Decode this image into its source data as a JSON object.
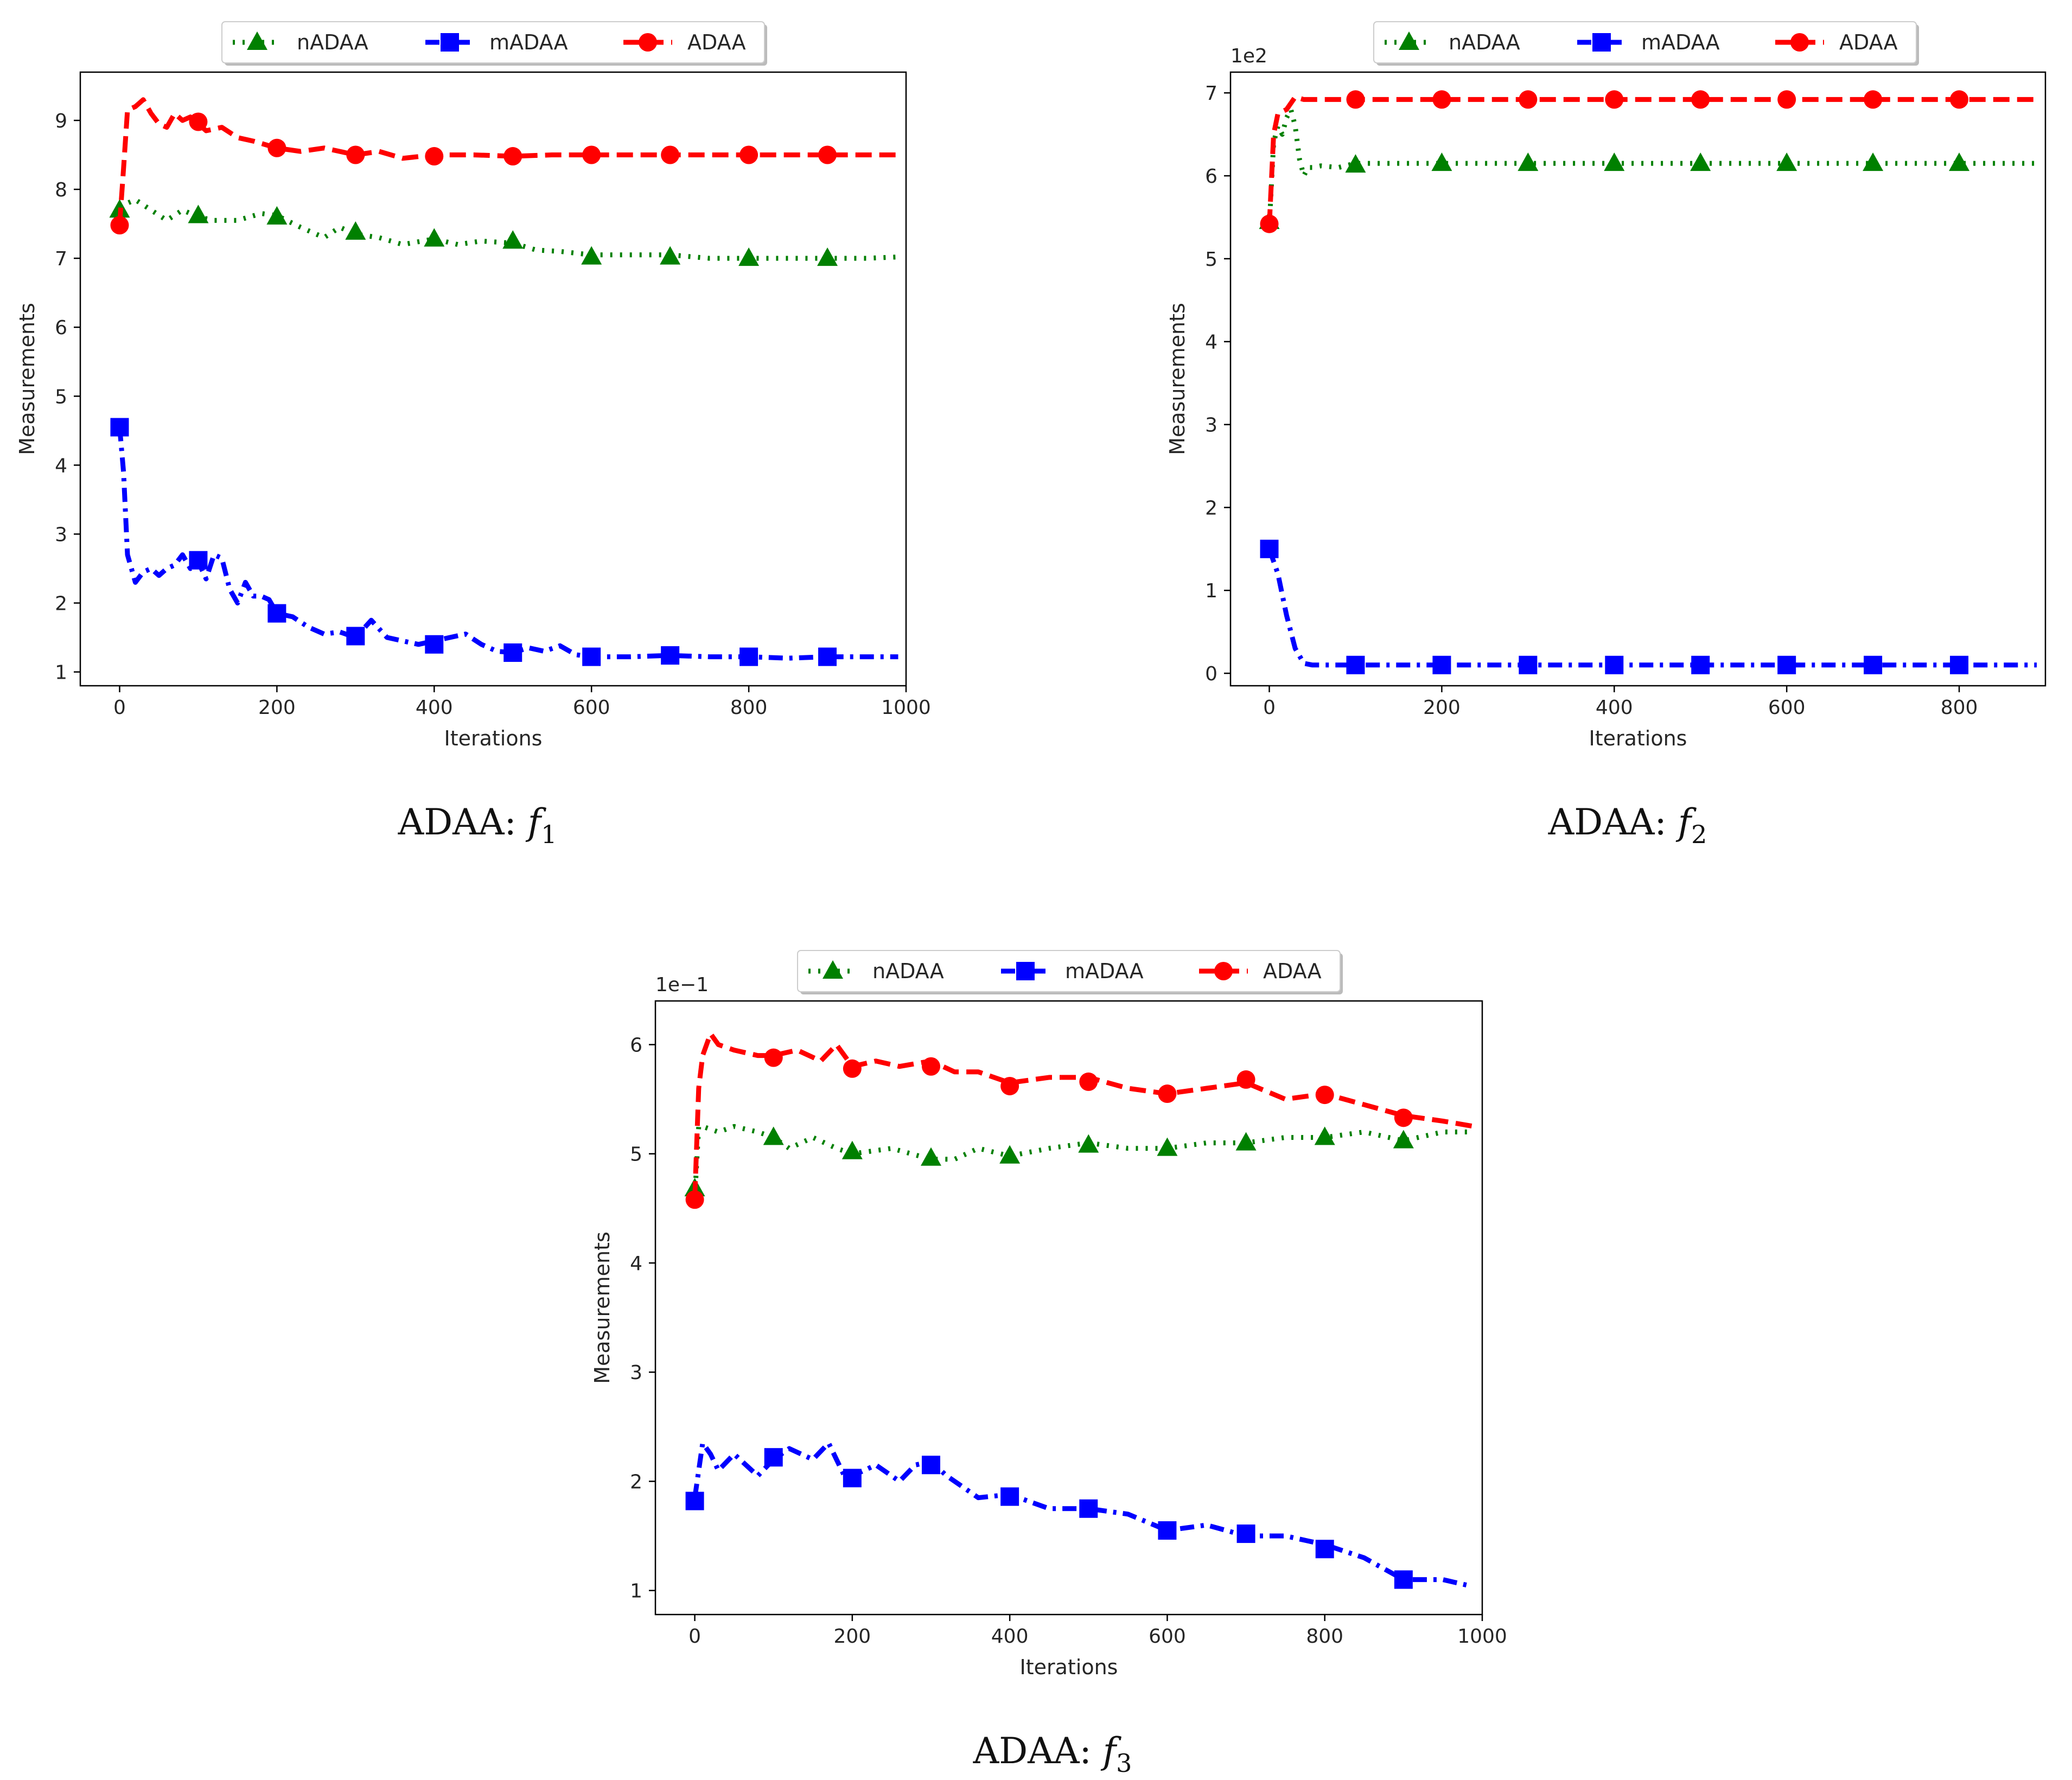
{
  "colors": {
    "nADAA": "#008000",
    "mADAA": "#0000ff",
    "ADAA": "#ff0000",
    "axis": "#000000",
    "text": "#262626"
  },
  "chart_data": [
    {
      "type": "line",
      "caption": "ADAA: ",
      "caption_func": "f",
      "caption_sub": "1",
      "xlabel": "Iterations",
      "ylabel": "Measurements",
      "offset_text": "",
      "xlim": [
        -50,
        1000
      ],
      "ylim": [
        0.8,
        9.7
      ],
      "xticks": [
        0,
        200,
        400,
        600,
        800,
        1000
      ],
      "xtick_labels": [
        "0",
        "200",
        "400",
        "600",
        "800",
        "1000"
      ],
      "yticks": [
        1,
        2,
        3,
        4,
        5,
        6,
        7,
        8,
        9
      ],
      "ytick_labels": [
        "1",
        "2",
        "3",
        "4",
        "5",
        "6",
        "7",
        "8",
        "9"
      ],
      "legend": [
        "nADAA",
        "mADAA",
        "ADAA"
      ],
      "series": [
        {
          "name": "nADAA",
          "style": "dotted",
          "marker": "triangle",
          "x": [
            0,
            10,
            20,
            40,
            60,
            80,
            100,
            120,
            150,
            180,
            200,
            230,
            260,
            280,
            300,
            330,
            360,
            400,
            430,
            460,
            500,
            530,
            560,
            600,
            650,
            700,
            750,
            800,
            850,
            900,
            950,
            990
          ],
          "y": [
            7.75,
            7.8,
            7.85,
            7.7,
            7.55,
            7.7,
            7.6,
            7.55,
            7.55,
            7.65,
            7.62,
            7.45,
            7.3,
            7.45,
            7.35,
            7.3,
            7.2,
            7.28,
            7.2,
            7.25,
            7.22,
            7.12,
            7.1,
            7.05,
            7.05,
            7.05,
            7.0,
            7.0,
            7.0,
            7.0,
            7.0,
            7.02
          ],
          "marker_x": [
            0,
            100,
            200,
            300,
            400,
            500,
            600,
            700,
            800,
            900
          ],
          "marker_y": [
            7.7,
            7.62,
            7.6,
            7.38,
            7.28,
            7.25,
            7.02,
            7.02,
            7.0,
            7.0
          ]
        },
        {
          "name": "mADAA",
          "style": "dashdot",
          "marker": "square",
          "x": [
            0,
            5,
            10,
            20,
            30,
            40,
            50,
            60,
            70,
            80,
            90,
            100,
            110,
            120,
            130,
            140,
            150,
            160,
            170,
            180,
            190,
            200,
            220,
            240,
            260,
            280,
            300,
            320,
            340,
            360,
            380,
            400,
            420,
            440,
            460,
            480,
            500,
            520,
            540,
            560,
            580,
            600,
            650,
            700,
            750,
            800,
            850,
            900,
            950,
            990
          ],
          "y": [
            4.55,
            3.9,
            2.7,
            2.3,
            2.45,
            2.5,
            2.4,
            2.5,
            2.55,
            2.7,
            2.5,
            2.6,
            2.35,
            2.7,
            2.65,
            2.2,
            2.0,
            2.3,
            2.1,
            2.1,
            2.05,
            1.85,
            1.8,
            1.65,
            1.55,
            1.58,
            1.5,
            1.75,
            1.5,
            1.45,
            1.4,
            1.45,
            1.5,
            1.55,
            1.4,
            1.3,
            1.28,
            1.35,
            1.3,
            1.38,
            1.25,
            1.22,
            1.22,
            1.24,
            1.22,
            1.22,
            1.2,
            1.22,
            1.22,
            1.22
          ],
          "marker_x": [
            0,
            100,
            200,
            300,
            400,
            500,
            600,
            700,
            800,
            900
          ],
          "marker_y": [
            4.55,
            2.62,
            1.85,
            1.52,
            1.4,
            1.28,
            1.22,
            1.24,
            1.22,
            1.22
          ]
        },
        {
          "name": "ADAA",
          "style": "dashed",
          "marker": "circle",
          "x": [
            0,
            5,
            10,
            20,
            30,
            40,
            50,
            60,
            70,
            80,
            90,
            100,
            110,
            130,
            150,
            170,
            200,
            230,
            260,
            300,
            330,
            360,
            400,
            450,
            500,
            550,
            600,
            700,
            800,
            900,
            990
          ],
          "y": [
            7.5,
            8.3,
            9.15,
            9.2,
            9.3,
            9.1,
            8.95,
            8.9,
            9.1,
            9.0,
            9.05,
            8.95,
            8.85,
            8.9,
            8.75,
            8.7,
            8.6,
            8.55,
            8.6,
            8.5,
            8.55,
            8.45,
            8.5,
            8.5,
            8.48,
            8.5,
            8.5,
            8.5,
            8.5,
            8.5,
            8.5
          ],
          "marker_x": [
            0,
            100,
            200,
            300,
            400,
            500,
            600,
            700,
            800,
            900
          ],
          "marker_y": [
            7.48,
            8.98,
            8.6,
            8.5,
            8.48,
            8.48,
            8.5,
            8.5,
            8.5,
            8.5
          ]
        }
      ]
    },
    {
      "type": "line",
      "caption": "ADAA: ",
      "caption_func": "f",
      "caption_sub": "2",
      "xlabel": "Iterations",
      "ylabel": "Measurements",
      "offset_text": "1e2",
      "xlim": [
        -45,
        900
      ],
      "ylim": [
        -0.15,
        7.25
      ],
      "xticks": [
        0,
        200,
        400,
        600,
        800
      ],
      "xtick_labels": [
        "0",
        "200",
        "400",
        "600",
        "800"
      ],
      "yticks": [
        0,
        1,
        2,
        3,
        4,
        5,
        6,
        7
      ],
      "ytick_labels": [
        "0",
        "1",
        "2",
        "3",
        "4",
        "5",
        "6",
        "7"
      ],
      "legend": [
        "nADAA",
        "mADAA",
        "ADAA"
      ],
      "series": [
        {
          "name": "nADAA",
          "style": "dotted",
          "marker": "triangle",
          "x": [
            0,
            5,
            10,
            15,
            20,
            25,
            30,
            35,
            40,
            45,
            50,
            60,
            80,
            100,
            200,
            300,
            400,
            500,
            600,
            700,
            800,
            890
          ],
          "y": [
            5.4,
            6.4,
            6.6,
            6.5,
            6.7,
            6.8,
            6.6,
            6.2,
            6.0,
            6.1,
            6.1,
            6.12,
            6.1,
            6.15,
            6.15,
            6.15,
            6.15,
            6.15,
            6.15,
            6.15,
            6.15,
            6.15
          ],
          "marker_x": [
            0,
            100,
            200,
            300,
            400,
            500,
            600,
            700,
            800
          ],
          "marker_y": [
            5.45,
            6.13,
            6.15,
            6.15,
            6.15,
            6.15,
            6.15,
            6.15,
            6.15
          ]
        },
        {
          "name": "mADAA",
          "style": "dashdot",
          "marker": "square",
          "x": [
            0,
            10,
            20,
            30,
            40,
            50,
            60,
            80,
            100,
            200,
            300,
            400,
            500,
            600,
            700,
            800,
            890
          ],
          "y": [
            1.5,
            1.2,
            0.7,
            0.3,
            0.12,
            0.1,
            0.1,
            0.1,
            0.1,
            0.1,
            0.1,
            0.1,
            0.1,
            0.1,
            0.1,
            0.1,
            0.1
          ],
          "marker_x": [
            0,
            100,
            200,
            300,
            400,
            500,
            600,
            700,
            800
          ],
          "marker_y": [
            1.5,
            0.1,
            0.1,
            0.1,
            0.1,
            0.1,
            0.1,
            0.1,
            0.1
          ]
        },
        {
          "name": "ADAA",
          "style": "dashed",
          "marker": "circle",
          "x": [
            0,
            5,
            10,
            20,
            30,
            40,
            60,
            80,
            100,
            200,
            300,
            400,
            500,
            600,
            700,
            800,
            890
          ],
          "y": [
            5.4,
            6.5,
            6.75,
            6.8,
            6.95,
            6.92,
            6.92,
            6.92,
            6.92,
            6.92,
            6.92,
            6.92,
            6.92,
            6.92,
            6.92,
            6.92,
            6.92
          ],
          "marker_x": [
            0,
            100,
            200,
            300,
            400,
            500,
            600,
            700,
            800
          ],
          "marker_y": [
            5.42,
            6.92,
            6.92,
            6.92,
            6.92,
            6.92,
            6.92,
            6.92,
            6.92
          ]
        }
      ]
    },
    {
      "type": "line",
      "caption": "ADAA: ",
      "caption_func": "f",
      "caption_sub": "3",
      "xlabel": "Iterations",
      "ylabel": "Measurements",
      "offset_text": "1e−1",
      "xlim": [
        -50,
        1000
      ],
      "ylim": [
        0.78,
        6.4
      ],
      "xticks": [
        0,
        200,
        400,
        600,
        800,
        1000
      ],
      "xtick_labels": [
        "0",
        "200",
        "400",
        "600",
        "800",
        "1000"
      ],
      "yticks": [
        1,
        2,
        3,
        4,
        5,
        6
      ],
      "ytick_labels": [
        "1",
        "2",
        "3",
        "4",
        "5",
        "6"
      ],
      "legend": [
        "nADAA",
        "mADAA",
        "ADAA"
      ],
      "series": [
        {
          "name": "nADAA",
          "style": "dotted",
          "marker": "triangle",
          "x": [
            0,
            5,
            10,
            30,
            50,
            80,
            100,
            120,
            150,
            180,
            200,
            250,
            300,
            330,
            360,
            400,
            450,
            500,
            550,
            600,
            650,
            700,
            750,
            800,
            850,
            900,
            950,
            990
          ],
          "y": [
            4.6,
            5.25,
            5.25,
            5.2,
            5.25,
            5.2,
            5.15,
            5.05,
            5.15,
            5.05,
            5.0,
            5.05,
            4.95,
            4.95,
            5.05,
            4.98,
            5.05,
            5.1,
            5.05,
            5.05,
            5.1,
            5.1,
            5.15,
            5.15,
            5.2,
            5.12,
            5.2,
            5.2
          ],
          "marker_x": [
            0,
            100,
            200,
            300,
            400,
            500,
            600,
            700,
            800,
            900
          ],
          "marker_y": [
            4.68,
            5.15,
            5.02,
            4.96,
            4.98,
            5.08,
            5.05,
            5.1,
            5.15,
            5.12
          ]
        },
        {
          "name": "mADAA",
          "style": "dashdot",
          "marker": "square",
          "x": [
            0,
            10,
            20,
            30,
            50,
            80,
            100,
            120,
            150,
            170,
            190,
            200,
            230,
            260,
            280,
            300,
            320,
            340,
            360,
            400,
            450,
            500,
            550,
            600,
            650,
            700,
            750,
            800,
            850,
            900,
            950,
            980
          ],
          "y": [
            1.85,
            2.35,
            2.25,
            2.1,
            2.25,
            2.05,
            2.2,
            2.3,
            2.2,
            2.35,
            2.05,
            2.05,
            2.15,
            2.0,
            2.15,
            2.18,
            2.05,
            1.95,
            1.85,
            1.88,
            1.75,
            1.75,
            1.7,
            1.55,
            1.6,
            1.5,
            1.5,
            1.42,
            1.3,
            1.1,
            1.1,
            1.05
          ],
          "marker_x": [
            0,
            100,
            200,
            300,
            400,
            500,
            600,
            700,
            800,
            900
          ],
          "marker_y": [
            1.82,
            2.22,
            2.03,
            2.15,
            1.86,
            1.75,
            1.55,
            1.52,
            1.38,
            1.1
          ]
        },
        {
          "name": "ADAA",
          "style": "dashed",
          "marker": "circle",
          "x": [
            0,
            5,
            10,
            20,
            30,
            50,
            80,
            100,
            130,
            160,
            180,
            200,
            230,
            260,
            300,
            330,
            360,
            400,
            450,
            500,
            550,
            600,
            650,
            700,
            750,
            800,
            850,
            900,
            950,
            990
          ],
          "y": [
            4.6,
            5.6,
            5.9,
            6.1,
            6.0,
            5.95,
            5.9,
            5.9,
            5.95,
            5.85,
            6.0,
            5.8,
            5.85,
            5.8,
            5.85,
            5.75,
            5.75,
            5.65,
            5.7,
            5.7,
            5.6,
            5.55,
            5.6,
            5.65,
            5.5,
            5.55,
            5.45,
            5.35,
            5.3,
            5.25
          ],
          "marker_x": [
            0,
            100,
            200,
            300,
            400,
            500,
            600,
            700,
            800,
            900
          ],
          "marker_y": [
            4.58,
            5.88,
            5.78,
            5.8,
            5.62,
            5.66,
            5.55,
            5.68,
            5.54,
            5.33
          ]
        }
      ]
    }
  ]
}
